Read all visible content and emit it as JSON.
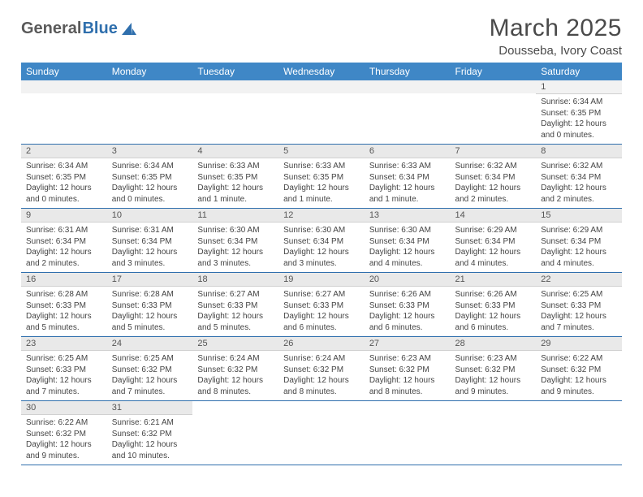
{
  "logo": {
    "part1": "General",
    "part2": "Blue"
  },
  "title": "March 2025",
  "location": "Dousseba, Ivory Coast",
  "columns": [
    "Sunday",
    "Monday",
    "Tuesday",
    "Wednesday",
    "Thursday",
    "Friday",
    "Saturday"
  ],
  "colors": {
    "header_bg": "#3f87c6",
    "header_text": "#ffffff",
    "row_divider": "#2f6fad",
    "daynum_bg": "#e9e9e9",
    "logo_blue": "#2f6fad",
    "logo_gray": "#5a5a5a"
  },
  "weeks": [
    [
      null,
      null,
      null,
      null,
      null,
      null,
      {
        "n": "1",
        "sr": "Sunrise: 6:34 AM",
        "ss": "Sunset: 6:35 PM",
        "d1": "Daylight: 12 hours",
        "d2": "and 0 minutes."
      }
    ],
    [
      {
        "n": "2",
        "sr": "Sunrise: 6:34 AM",
        "ss": "Sunset: 6:35 PM",
        "d1": "Daylight: 12 hours",
        "d2": "and 0 minutes."
      },
      {
        "n": "3",
        "sr": "Sunrise: 6:34 AM",
        "ss": "Sunset: 6:35 PM",
        "d1": "Daylight: 12 hours",
        "d2": "and 0 minutes."
      },
      {
        "n": "4",
        "sr": "Sunrise: 6:33 AM",
        "ss": "Sunset: 6:35 PM",
        "d1": "Daylight: 12 hours",
        "d2": "and 1 minute."
      },
      {
        "n": "5",
        "sr": "Sunrise: 6:33 AM",
        "ss": "Sunset: 6:35 PM",
        "d1": "Daylight: 12 hours",
        "d2": "and 1 minute."
      },
      {
        "n": "6",
        "sr": "Sunrise: 6:33 AM",
        "ss": "Sunset: 6:34 PM",
        "d1": "Daylight: 12 hours",
        "d2": "and 1 minute."
      },
      {
        "n": "7",
        "sr": "Sunrise: 6:32 AM",
        "ss": "Sunset: 6:34 PM",
        "d1": "Daylight: 12 hours",
        "d2": "and 2 minutes."
      },
      {
        "n": "8",
        "sr": "Sunrise: 6:32 AM",
        "ss": "Sunset: 6:34 PM",
        "d1": "Daylight: 12 hours",
        "d2": "and 2 minutes."
      }
    ],
    [
      {
        "n": "9",
        "sr": "Sunrise: 6:31 AM",
        "ss": "Sunset: 6:34 PM",
        "d1": "Daylight: 12 hours",
        "d2": "and 2 minutes."
      },
      {
        "n": "10",
        "sr": "Sunrise: 6:31 AM",
        "ss": "Sunset: 6:34 PM",
        "d1": "Daylight: 12 hours",
        "d2": "and 3 minutes."
      },
      {
        "n": "11",
        "sr": "Sunrise: 6:30 AM",
        "ss": "Sunset: 6:34 PM",
        "d1": "Daylight: 12 hours",
        "d2": "and 3 minutes."
      },
      {
        "n": "12",
        "sr": "Sunrise: 6:30 AM",
        "ss": "Sunset: 6:34 PM",
        "d1": "Daylight: 12 hours",
        "d2": "and 3 minutes."
      },
      {
        "n": "13",
        "sr": "Sunrise: 6:30 AM",
        "ss": "Sunset: 6:34 PM",
        "d1": "Daylight: 12 hours",
        "d2": "and 4 minutes."
      },
      {
        "n": "14",
        "sr": "Sunrise: 6:29 AM",
        "ss": "Sunset: 6:34 PM",
        "d1": "Daylight: 12 hours",
        "d2": "and 4 minutes."
      },
      {
        "n": "15",
        "sr": "Sunrise: 6:29 AM",
        "ss": "Sunset: 6:34 PM",
        "d1": "Daylight: 12 hours",
        "d2": "and 4 minutes."
      }
    ],
    [
      {
        "n": "16",
        "sr": "Sunrise: 6:28 AM",
        "ss": "Sunset: 6:33 PM",
        "d1": "Daylight: 12 hours",
        "d2": "and 5 minutes."
      },
      {
        "n": "17",
        "sr": "Sunrise: 6:28 AM",
        "ss": "Sunset: 6:33 PM",
        "d1": "Daylight: 12 hours",
        "d2": "and 5 minutes."
      },
      {
        "n": "18",
        "sr": "Sunrise: 6:27 AM",
        "ss": "Sunset: 6:33 PM",
        "d1": "Daylight: 12 hours",
        "d2": "and 5 minutes."
      },
      {
        "n": "19",
        "sr": "Sunrise: 6:27 AM",
        "ss": "Sunset: 6:33 PM",
        "d1": "Daylight: 12 hours",
        "d2": "and 6 minutes."
      },
      {
        "n": "20",
        "sr": "Sunrise: 6:26 AM",
        "ss": "Sunset: 6:33 PM",
        "d1": "Daylight: 12 hours",
        "d2": "and 6 minutes."
      },
      {
        "n": "21",
        "sr": "Sunrise: 6:26 AM",
        "ss": "Sunset: 6:33 PM",
        "d1": "Daylight: 12 hours",
        "d2": "and 6 minutes."
      },
      {
        "n": "22",
        "sr": "Sunrise: 6:25 AM",
        "ss": "Sunset: 6:33 PM",
        "d1": "Daylight: 12 hours",
        "d2": "and 7 minutes."
      }
    ],
    [
      {
        "n": "23",
        "sr": "Sunrise: 6:25 AM",
        "ss": "Sunset: 6:33 PM",
        "d1": "Daylight: 12 hours",
        "d2": "and 7 minutes."
      },
      {
        "n": "24",
        "sr": "Sunrise: 6:25 AM",
        "ss": "Sunset: 6:32 PM",
        "d1": "Daylight: 12 hours",
        "d2": "and 7 minutes."
      },
      {
        "n": "25",
        "sr": "Sunrise: 6:24 AM",
        "ss": "Sunset: 6:32 PM",
        "d1": "Daylight: 12 hours",
        "d2": "and 8 minutes."
      },
      {
        "n": "26",
        "sr": "Sunrise: 6:24 AM",
        "ss": "Sunset: 6:32 PM",
        "d1": "Daylight: 12 hours",
        "d2": "and 8 minutes."
      },
      {
        "n": "27",
        "sr": "Sunrise: 6:23 AM",
        "ss": "Sunset: 6:32 PM",
        "d1": "Daylight: 12 hours",
        "d2": "and 8 minutes."
      },
      {
        "n": "28",
        "sr": "Sunrise: 6:23 AM",
        "ss": "Sunset: 6:32 PM",
        "d1": "Daylight: 12 hours",
        "d2": "and 9 minutes."
      },
      {
        "n": "29",
        "sr": "Sunrise: 6:22 AM",
        "ss": "Sunset: 6:32 PM",
        "d1": "Daylight: 12 hours",
        "d2": "and 9 minutes."
      }
    ],
    [
      {
        "n": "30",
        "sr": "Sunrise: 6:22 AM",
        "ss": "Sunset: 6:32 PM",
        "d1": "Daylight: 12 hours",
        "d2": "and 9 minutes."
      },
      {
        "n": "31",
        "sr": "Sunrise: 6:21 AM",
        "ss": "Sunset: 6:32 PM",
        "d1": "Daylight: 12 hours",
        "d2": "and 10 minutes."
      },
      null,
      null,
      null,
      null,
      null
    ]
  ]
}
